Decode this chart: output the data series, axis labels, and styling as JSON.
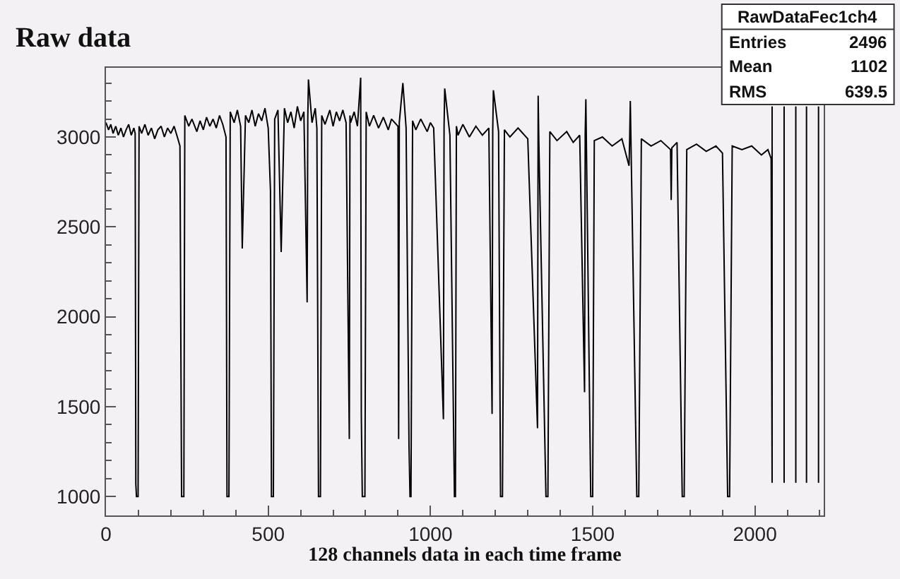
{
  "chart_data": {
    "type": "line",
    "title": "Raw data",
    "xlabel": "128 channels data in each time frame",
    "xlim": [
      0,
      2212
    ],
    "ylim": [
      895,
      3385
    ],
    "xticks": [
      0,
      500,
      1000,
      1500,
      2000
    ],
    "yticks": [
      1000,
      1500,
      2000,
      2500,
      3000
    ],
    "grid": false,
    "annotations": [
      "RawDataFec1ch4",
      "Entries",
      "2496",
      "Mean",
      "1102",
      "RMS",
      "639.5"
    ],
    "series": [
      {
        "color": "#000000",
        "x": [
          0,
          8,
          15,
          22,
          30,
          38,
          46,
          54,
          62,
          70,
          78,
          86,
          90,
          92,
          94,
          97,
          99,
          102,
          110,
          120,
          130,
          140,
          150,
          160,
          170,
          180,
          190,
          200,
          210,
          220,
          228,
          233,
          236,
          240,
          243,
          255,
          265,
          280,
          290,
          300,
          310,
          320,
          330,
          340,
          350,
          360,
          370,
          373,
          376,
          379,
          383,
          395,
          405,
          415,
          420,
          430,
          440,
          450,
          460,
          470,
          480,
          490,
          500,
          507,
          510,
          513,
          516,
          520,
          530,
          540,
          550,
          560,
          570,
          580,
          590,
          600,
          610,
          620,
          622,
          624,
          635,
          645,
          650,
          655,
          658,
          661,
          665,
          675,
          690,
          700,
          710,
          720,
          730,
          740,
          750,
          752,
          754,
          765,
          775,
          785,
          787,
          790,
          793,
          795,
          798,
          802,
          812,
          825,
          840,
          855,
          870,
          880,
          900,
          902,
          904,
          915,
          925,
          934,
          937,
          940,
          945,
          955,
          970,
          990,
          1000,
          1010,
          1040,
          1042,
          1044,
          1060,
          1074,
          1077,
          1080,
          1085,
          1100,
          1120,
          1140,
          1160,
          1180,
          1190,
          1192,
          1194,
          1210,
          1216,
          1219,
          1222,
          1228,
          1245,
          1270,
          1300,
          1330,
          1332,
          1334,
          1356,
          1359,
          1362,
          1368,
          1390,
          1420,
          1440,
          1460,
          1475,
          1477,
          1479,
          1494,
          1497,
          1500,
          1505,
          1530,
          1560,
          1590,
          1612,
          1614,
          1616,
          1636,
          1639,
          1642,
          1650,
          1680,
          1710,
          1740,
          1742,
          1744,
          1760,
          1776,
          1779,
          1782,
          1790,
          1820,
          1850,
          1880,
          1900,
          1916,
          1919,
          1922,
          1930,
          1960,
          1990,
          2020,
          2040,
          2050,
          2053,
          2053,
          2055,
          2090,
          2090,
          2092,
          2126,
          2126,
          2128,
          2159,
          2159,
          2161,
          2196,
          2196
        ],
        "values": [
          3080,
          3040,
          3070,
          3020,
          3060,
          3010,
          3050,
          3000,
          3040,
          3070,
          3010,
          3050,
          3020,
          1070,
          1000,
          1000,
          1000,
          3060,
          3020,
          3070,
          3010,
          3050,
          2990,
          3040,
          3060,
          3000,
          3050,
          3020,
          3060,
          3000,
          2950,
          1000,
          1000,
          1000,
          3120,
          3060,
          3100,
          3030,
          3090,
          3040,
          3110,
          3060,
          3100,
          3050,
          3120,
          3070,
          3000,
          1000,
          1000,
          1000,
          3140,
          3080,
          3150,
          3060,
          2380,
          3120,
          3080,
          3150,
          3060,
          3130,
          3090,
          3160,
          3050,
          2700,
          1000,
          1000,
          1000,
          3100,
          3150,
          2360,
          3160,
          3080,
          3140,
          3050,
          3170,
          3090,
          3140,
          2080,
          3110,
          3320,
          3080,
          3160,
          3050,
          1000,
          1000,
          1000,
          3120,
          3070,
          3150,
          3060,
          3140,
          3090,
          3150,
          3080,
          1320,
          3120,
          3080,
          3140,
          3060,
          3330,
          1450,
          1000,
          1000,
          1000,
          1000,
          3140,
          3060,
          3120,
          3050,
          3110,
          3040,
          3100,
          3060,
          1320,
          3080,
          3300,
          3050,
          1280,
          1000,
          1000,
          3090,
          3040,
          3100,
          3030,
          3080,
          3050,
          1430,
          3060,
          3270,
          3010,
          1000,
          1000,
          3060,
          3010,
          3070,
          3000,
          3060,
          3010,
          3050,
          1460,
          3040,
          3260,
          3030,
          1000,
          1000,
          1000,
          3040,
          3000,
          3050,
          2990,
          1380,
          3230,
          2980,
          1000,
          1000,
          1000,
          3030,
          2980,
          3030,
          2970,
          3010,
          1580,
          3020,
          3210,
          1000,
          1000,
          1000,
          2980,
          3000,
          2950,
          2990,
          2840,
          2990,
          3200,
          1000,
          1000,
          1000,
          2990,
          2950,
          2980,
          2930,
          2650,
          2940,
          2970,
          1000,
          1000,
          1000,
          2930,
          2960,
          2920,
          2950,
          2910,
          1000,
          1000,
          1000,
          2950,
          2930,
          2950,
          2900,
          2930,
          2880,
          1077,
          3170,
          null,
          1077,
          3170,
          null,
          1077,
          3170,
          null,
          1077,
          3170,
          null,
          1077,
          3170
        ]
      }
    ]
  }
}
